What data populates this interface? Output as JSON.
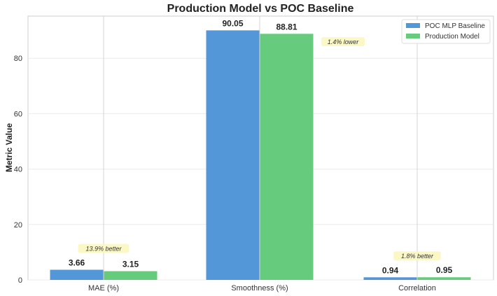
{
  "chart_data": {
    "type": "bar",
    "title": "Production Model vs POC Baseline",
    "xlabel": "",
    "ylabel": "Metric Value",
    "ylim": [
      0,
      95.2
    ],
    "yticks": [
      0,
      20,
      40,
      60,
      80
    ],
    "categories": [
      "MAE (%)",
      "Smoothness (%)",
      "Correlation"
    ],
    "series": [
      {
        "name": "POC MLP Baseline",
        "color": "#5497d8",
        "values": [
          3.66,
          90.05,
          0.94
        ],
        "labels": [
          "3.66",
          "90.05",
          "0.94"
        ]
      },
      {
        "name": "Production Model",
        "color": "#66cb7c",
        "values": [
          3.15,
          88.81,
          0.95
        ],
        "labels": [
          "3.15",
          "88.81",
          "0.95"
        ]
      }
    ],
    "annotations": [
      "13.9% better",
      "1.4% lower",
      "1.8% better"
    ],
    "legend_position": "top-right",
    "grid": true
  }
}
